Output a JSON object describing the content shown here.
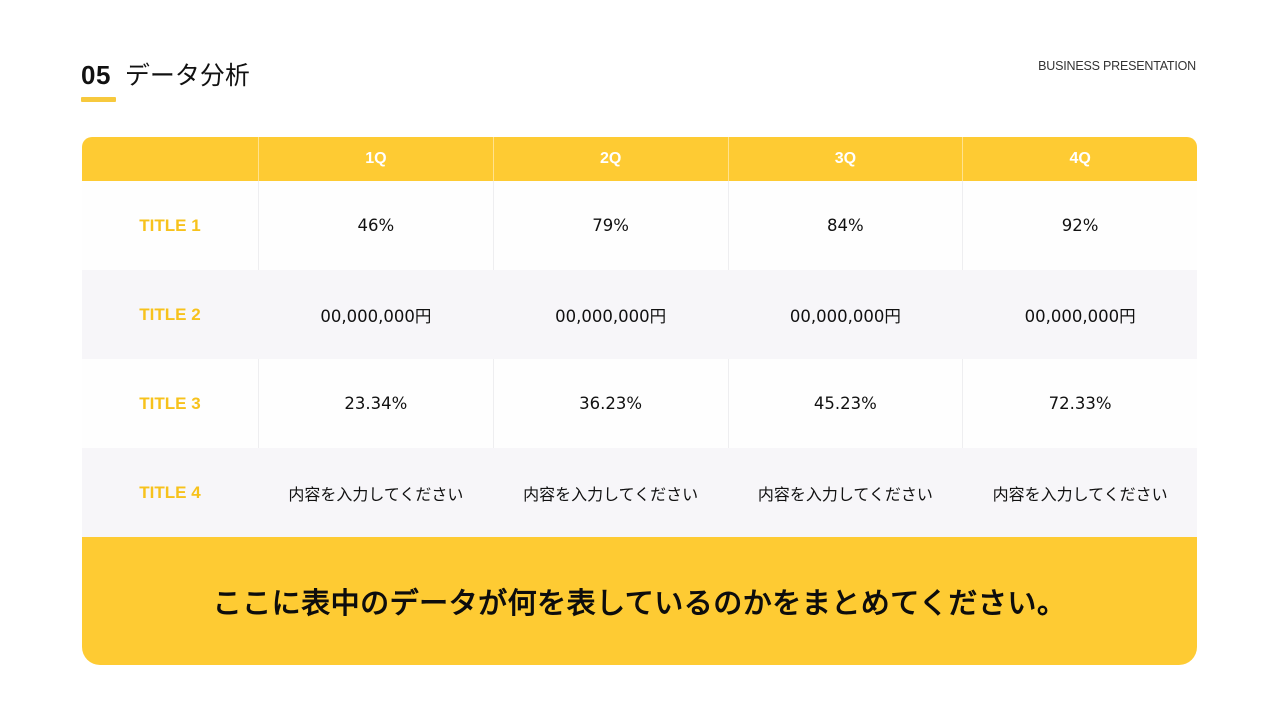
{
  "header": {
    "section_number": "05",
    "section_title": "データ分析",
    "brand_label": "BUSINESS PRESENTATION"
  },
  "colors": {
    "accent_yellow": "#fecb33",
    "label_yellow": "#f7c21c",
    "row_alt_gray": "#f7f6f9",
    "text_dark": "#111111"
  },
  "table": {
    "columns": [
      "",
      "1Q",
      "2Q",
      "3Q",
      "4Q"
    ],
    "rows": [
      {
        "label": "TITLE 1",
        "values": [
          "46%",
          "79%",
          "84%",
          "92%"
        ]
      },
      {
        "label": "TITLE 2",
        "values": [
          "00,000,000円",
          "00,000,000円",
          "00,000,000円",
          "00,000,000円"
        ]
      },
      {
        "label": "TITLE 3",
        "values": [
          "23.34%",
          "36.23%",
          "45.23%",
          "72.33%"
        ]
      },
      {
        "label": "TITLE 4",
        "values": [
          "内容を入力してください",
          "内容を入力してください",
          "内容を入力してください",
          "内容を入力してください"
        ]
      }
    ]
  },
  "summary": {
    "text": "ここに表中のデータが何を表しているのかをまとめてください。"
  }
}
